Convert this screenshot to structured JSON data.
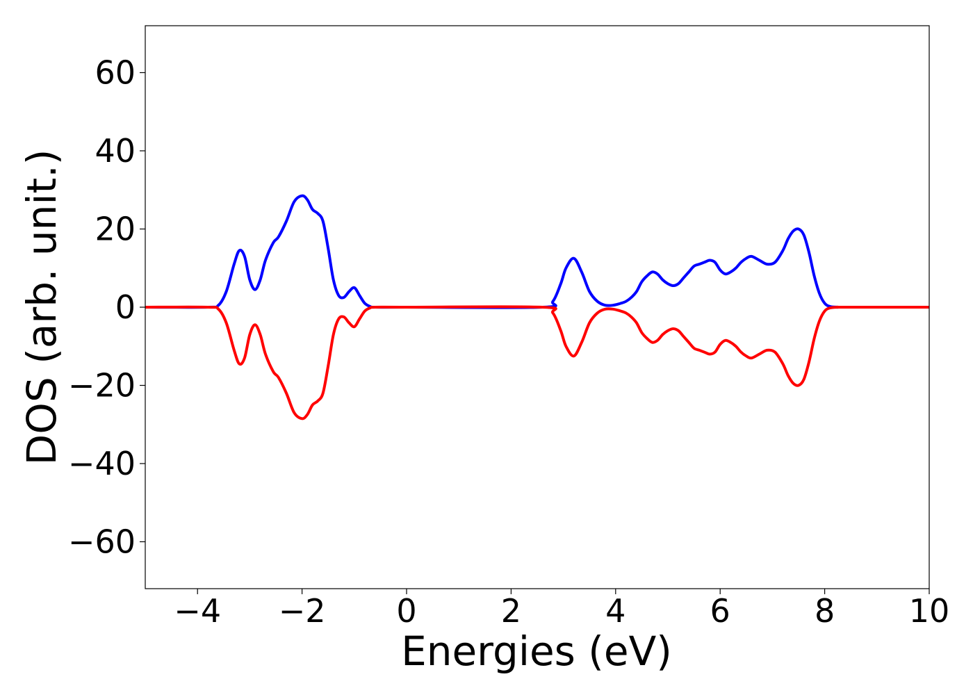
{
  "chart_data": {
    "type": "line",
    "xlabel": "Energies (eV)",
    "ylabel": "DOS (arb. unit.)",
    "xlim": [
      -5,
      10
    ],
    "ylim": [
      -72,
      72
    ],
    "x_ticks": [
      -4,
      -2,
      0,
      2,
      4,
      6,
      8,
      10
    ],
    "x_tick_labels": [
      "−4",
      "−2",
      "0",
      "2",
      "4",
      "6",
      "8",
      "10"
    ],
    "y_ticks": [
      -60,
      -40,
      -20,
      0,
      20,
      40,
      60
    ],
    "y_tick_labels": [
      "−60",
      "−40",
      "−20",
      "0",
      "20",
      "40",
      "60"
    ],
    "grid": false,
    "series": [
      {
        "color": "#0000ff",
        "x": [
          -5,
          -3.8,
          -3.6,
          -3.45,
          -3.3,
          -3.2,
          -3.1,
          -3.0,
          -2.9,
          -2.8,
          -2.7,
          -2.55,
          -2.45,
          -2.3,
          -2.15,
          -2.0,
          -1.9,
          -1.8,
          -1.7,
          -1.6,
          -1.5,
          -1.4,
          -1.3,
          -1.2,
          -1.1,
          -1.0,
          -0.9,
          -0.8,
          -0.7,
          -0.6,
          0,
          2.6,
          2.8,
          2.95,
          3.05,
          3.2,
          3.35,
          3.5,
          3.65,
          3.8,
          3.95,
          4.1,
          4.2,
          4.3,
          4.4,
          4.5,
          4.6,
          4.7,
          4.8,
          4.9,
          5.0,
          5.1,
          5.2,
          5.3,
          5.4,
          5.5,
          5.6,
          5.7,
          5.8,
          5.9,
          6.0,
          6.1,
          6.2,
          6.3,
          6.4,
          6.5,
          6.6,
          6.75,
          6.9,
          7.05,
          7.2,
          7.3,
          7.4,
          7.5,
          7.6,
          7.7,
          7.8,
          7.9,
          8.0,
          8.1,
          8.25,
          8.4,
          10
        ],
        "values": [
          0,
          0,
          0.5,
          4,
          11,
          14.5,
          13,
          7,
          4.5,
          7,
          12,
          16.5,
          18,
          22,
          27,
          28.5,
          27.5,
          25,
          24,
          22,
          15,
          7,
          3,
          2.5,
          4,
          5,
          3,
          1,
          0.2,
          0,
          0,
          0,
          1.5,
          6,
          10,
          12.5,
          9,
          4,
          1.5,
          0.5,
          0.5,
          1,
          1.5,
          2.5,
          4,
          6.5,
          8,
          9,
          8.5,
          7,
          6,
          5.5,
          6,
          7.5,
          9,
          10.5,
          11,
          11.5,
          12,
          11.5,
          9.5,
          8.5,
          9,
          10,
          11.5,
          12.5,
          13,
          12,
          11,
          11.5,
          14.5,
          17.5,
          19.5,
          20,
          18.5,
          14,
          8,
          3.5,
          1,
          0.2,
          0,
          0,
          0
        ]
      },
      {
        "color": "#ff0000",
        "x": [
          -5,
          -3.8,
          -3.6,
          -3.45,
          -3.3,
          -3.2,
          -3.1,
          -3.0,
          -2.9,
          -2.8,
          -2.7,
          -2.55,
          -2.45,
          -2.3,
          -2.15,
          -2.0,
          -1.9,
          -1.8,
          -1.7,
          -1.6,
          -1.5,
          -1.4,
          -1.3,
          -1.2,
          -1.1,
          -1.0,
          -0.9,
          -0.8,
          -0.7,
          -0.6,
          0,
          2.6,
          2.8,
          2.95,
          3.05,
          3.2,
          3.35,
          3.5,
          3.65,
          3.8,
          3.95,
          4.1,
          4.2,
          4.3,
          4.4,
          4.5,
          4.6,
          4.7,
          4.8,
          4.9,
          5.0,
          5.1,
          5.2,
          5.3,
          5.4,
          5.5,
          5.6,
          5.7,
          5.8,
          5.9,
          6.0,
          6.1,
          6.2,
          6.3,
          6.4,
          6.5,
          6.6,
          6.75,
          6.9,
          7.05,
          7.2,
          7.3,
          7.4,
          7.5,
          7.6,
          7.7,
          7.8,
          7.9,
          8.0,
          8.1,
          8.25,
          8.4,
          10
        ],
        "values": [
          0,
          0,
          -0.5,
          -4,
          -11,
          -14.5,
          -13,
          -7,
          -4.5,
          -7,
          -12,
          -16.5,
          -18,
          -22,
          -27,
          -28.5,
          -27.5,
          -25,
          -24,
          -22,
          -15,
          -7,
          -3,
          -2.5,
          -4,
          -5,
          -3,
          -1,
          -0.2,
          0,
          0,
          0,
          -1.5,
          -6,
          -10,
          -12.5,
          -9,
          -4,
          -1.5,
          -0.5,
          -0.5,
          -1,
          -1.5,
          -2.5,
          -4,
          -6.5,
          -8,
          -9,
          -8.5,
          -7,
          -6,
          -5.5,
          -6,
          -7.5,
          -9,
          -10.5,
          -11,
          -11.5,
          -12,
          -11.5,
          -9.5,
          -8.5,
          -9,
          -10,
          -11.5,
          -12.5,
          -13,
          -12,
          -11,
          -11.5,
          -14.5,
          -17.5,
          -19.5,
          -20,
          -18.5,
          -14,
          -8,
          -3.5,
          -1,
          -0.2,
          0,
          0,
          0
        ]
      }
    ]
  }
}
